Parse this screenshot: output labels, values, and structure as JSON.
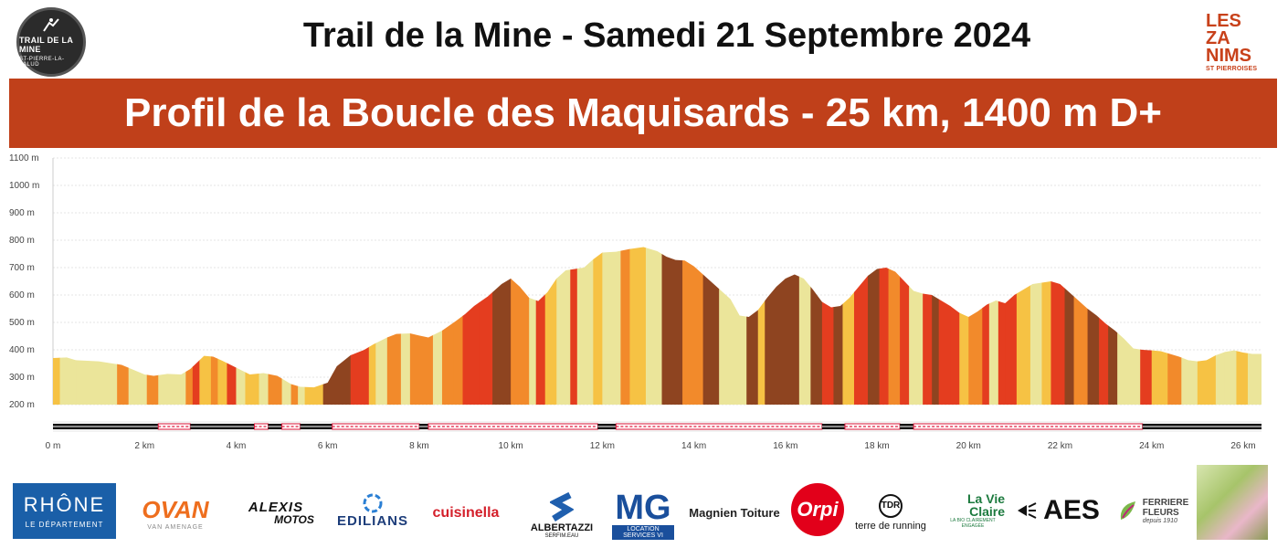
{
  "header": {
    "title": "Trail de la Mine - Samedi 21 Septembre 2024",
    "banner": "Profil de la Boucle des Maquisards - 25 km, 1400 m D+",
    "logo_left": {
      "line1": "TRAIL DE LA MINE",
      "line2": "ST-PIERRE-LA-PALUD"
    },
    "logo_right": {
      "lines": [
        "LES",
        "ZA",
        "NIMS"
      ],
      "sub": "ST PIERROISES"
    }
  },
  "chart_data": {
    "type": "area",
    "title": "",
    "xlabel": "",
    "ylabel": "",
    "xlim": [
      0,
      26.4
    ],
    "ylim": [
      200,
      1100
    ],
    "x_ticks": [
      0,
      2,
      4,
      6,
      8,
      10,
      12,
      14,
      16,
      18,
      20,
      22,
      24,
      26
    ],
    "x_tick_labels": [
      "0 m",
      "2 km",
      "4 km",
      "6 km",
      "8 km",
      "10 km",
      "12 km",
      "14 km",
      "16 km",
      "18 km",
      "20 km",
      "22 km",
      "24 km",
      "26 km"
    ],
    "y_ticks": [
      200,
      300,
      400,
      500,
      600,
      700,
      800,
      900,
      1000,
      1100
    ],
    "y_tick_labels": [
      "200 m",
      "300 m",
      "400 m",
      "500 m",
      "600 m",
      "700 m",
      "800 m",
      "900 m",
      "1000 m",
      "1100 m"
    ],
    "grid": true,
    "colors": {
      "flat": "#ebe59a",
      "light": "#f6c244",
      "medium": "#f28a2b",
      "steep": "#e43d1f",
      "very_steep": "#8e4420"
    },
    "series": [
      {
        "x": [
          0,
          0.3,
          0.5,
          1,
          1.5,
          2,
          2.2,
          2.5,
          2.8,
          3,
          3.3,
          3.5,
          3.7,
          4,
          4.3,
          4.6,
          4.9,
          5.2,
          5.4,
          5.7,
          6,
          6.2,
          6.5,
          6.8,
          7,
          7.3,
          7.5,
          7.8,
          8,
          8.2,
          8.5,
          8.8,
          9,
          9.2,
          9.5,
          9.8,
          10,
          10.2,
          10.4,
          10.6,
          10.8,
          11,
          11.2,
          11.4,
          11.6,
          11.8,
          12,
          12.3,
          12.6,
          12.9,
          13.2,
          13.4,
          13.6,
          13.8,
          14,
          14.2,
          14.4,
          14.6,
          14.8,
          15,
          15.2,
          15.4,
          15.6,
          15.8,
          16,
          16.2,
          16.4,
          16.6,
          16.8,
          17,
          17.2,
          17.4,
          17.6,
          17.8,
          18,
          18.2,
          18.4,
          18.6,
          18.8,
          19,
          19.2,
          19.4,
          19.6,
          19.8,
          20,
          20.2,
          20.4,
          20.6,
          20.8,
          21,
          21.2,
          21.4,
          21.6,
          21.8,
          22,
          22.2,
          22.4,
          22.6,
          22.8,
          23,
          23.2,
          23.4,
          23.6,
          23.8,
          24,
          24.2,
          24.4,
          24.6,
          24.8,
          25,
          25.2,
          25.4,
          25.6,
          25.8,
          26,
          26.2,
          26.4
        ],
        "y": [
          370,
          372,
          362,
          358,
          345,
          310,
          305,
          312,
          310,
          330,
          378,
          375,
          360,
          335,
          310,
          315,
          305,
          275,
          265,
          263,
          280,
          340,
          380,
          400,
          420,
          445,
          458,
          460,
          452,
          445,
          470,
          505,
          530,
          560,
          595,
          640,
          660,
          630,
          590,
          578,
          610,
          660,
          690,
          695,
          700,
          730,
          755,
          758,
          768,
          775,
          760,
          740,
          728,
          726,
          705,
          675,
          645,
          615,
          585,
          525,
          520,
          545,
          590,
          630,
          660,
          675,
          660,
          620,
          575,
          555,
          560,
          590,
          630,
          670,
          695,
          700,
          685,
          650,
          615,
          605,
          600,
          580,
          560,
          535,
          520,
          540,
          565,
          580,
          570,
          600,
          620,
          640,
          645,
          650,
          640,
          610,
          580,
          550,
          525,
          495,
          470,
          440,
          405,
          400,
          398,
          395,
          385,
          375,
          362,
          358,
          362,
          380,
          392,
          398,
          390,
          385,
          385
        ]
      }
    ],
    "segment_bounds": [
      0,
      0.15,
      0.5,
      1.4,
      1.65,
      1.9,
      2.05,
      2.3,
      2.8,
      2.9,
      3.05,
      3.2,
      3.45,
      3.6,
      3.8,
      4,
      4.2,
      4.5,
      4.7,
      5,
      5.2,
      5.35,
      5.5,
      5.9,
      6.1,
      6.5,
      6.9,
      7.05,
      7.3,
      7.6,
      7.8,
      8.1,
      8.3,
      8.5,
      8.75,
      8.95,
      9.3,
      9.6,
      10,
      10.4,
      10.55,
      10.75,
      11,
      11.3,
      11.45,
      11.8,
      12,
      12.4,
      12.6,
      12.95,
      13.3,
      13.55,
      13.75,
      14.2,
      14.55,
      14.9,
      15.15,
      15.4,
      15.55,
      16.05,
      16.3,
      16.55,
      16.8,
      17.05,
      17.25,
      17.5,
      17.8,
      18.05,
      18.25,
      18.5,
      18.7,
      19,
      19.2,
      19.35,
      19.6,
      19.8,
      20,
      20.3,
      20.45,
      20.65,
      20.8,
      21.05,
      21.35,
      21.6,
      21.8,
      22.1,
      22.3,
      22.6,
      22.85,
      23.05,
      23.25,
      23.5,
      23.75,
      24,
      24.35,
      24.65,
      24.85,
      25,
      25.2,
      25.4,
      25.6,
      25.85,
      26.1,
      26.4
    ],
    "segment_classes": [
      "light",
      "flat",
      "flat",
      "medium",
      "flat",
      "flat",
      "medium",
      "flat",
      "flat",
      "medium",
      "steep",
      "light",
      "medium",
      "light",
      "steep",
      "flat",
      "light",
      "flat",
      "medium",
      "flat",
      "medium",
      "flat",
      "light",
      "very_steep",
      "very_steep",
      "steep",
      "light",
      "flat",
      "medium",
      "flat",
      "medium",
      "medium",
      "flat",
      "medium",
      "medium",
      "steep",
      "steep",
      "very_steep",
      "medium",
      "flat",
      "steep",
      "light",
      "flat",
      "steep",
      "flat",
      "light",
      "flat",
      "medium",
      "light",
      "flat",
      "very_steep",
      "very_steep",
      "medium",
      "very_steep",
      "flat",
      "flat",
      "very_steep",
      "light",
      "very_steep",
      "very_steep",
      "flat",
      "very_steep",
      "steep",
      "very_steep",
      "light",
      "steep",
      "very_steep",
      "steep",
      "medium",
      "steep",
      "flat",
      "steep",
      "very_steep",
      "steep",
      "steep",
      "light",
      "medium",
      "steep",
      "flat",
      "steep",
      "steep",
      "light",
      "flat",
      "light",
      "steep",
      "very_steep",
      "medium",
      "very_steep",
      "steep",
      "very_steep",
      "flat",
      "flat",
      "steep",
      "light",
      "medium",
      "flat",
      "flat",
      "light",
      "light",
      "flat",
      "flat",
      "light",
      "flat"
    ],
    "surface_bar": {
      "segments": [
        {
          "from": 0,
          "to": 2.3,
          "type": "road"
        },
        {
          "from": 2.3,
          "to": 3.0,
          "type": "trail"
        },
        {
          "from": 3.0,
          "to": 4.4,
          "type": "road"
        },
        {
          "from": 4.4,
          "to": 4.7,
          "type": "trail"
        },
        {
          "from": 4.7,
          "to": 5.0,
          "type": "road"
        },
        {
          "from": 5.0,
          "to": 5.4,
          "type": "trail"
        },
        {
          "from": 5.4,
          "to": 6.1,
          "type": "road"
        },
        {
          "from": 6.1,
          "to": 8.0,
          "type": "trail"
        },
        {
          "from": 8.0,
          "to": 8.2,
          "type": "road"
        },
        {
          "from": 8.2,
          "to": 11.9,
          "type": "trail"
        },
        {
          "from": 11.9,
          "to": 12.3,
          "type": "road"
        },
        {
          "from": 12.3,
          "to": 16.8,
          "type": "trail"
        },
        {
          "from": 16.8,
          "to": 17.3,
          "type": "road"
        },
        {
          "from": 17.3,
          "to": 18.5,
          "type": "trail"
        },
        {
          "from": 18.5,
          "to": 18.8,
          "type": "road"
        },
        {
          "from": 18.8,
          "to": 23.8,
          "type": "trail"
        },
        {
          "from": 23.8,
          "to": 26.4,
          "type": "road"
        }
      ]
    }
  },
  "sponsors": [
    {
      "name": "rhone",
      "line1": "RHÔNE",
      "line2": "LE DÉPARTEMENT"
    },
    {
      "name": "ovan",
      "line1": "OVAN",
      "line2": "VAN AMENAGE"
    },
    {
      "name": "alexis",
      "line1": "ALEXIS",
      "line2": "MOTOS"
    },
    {
      "name": "edilians",
      "line1": "EDILIANS"
    },
    {
      "name": "cuisinella",
      "line1": "cuisinella"
    },
    {
      "name": "albertazzi",
      "line1": "ALBERTAZZI",
      "line2": "SERFIM.EAU"
    },
    {
      "name": "mg",
      "line1": "MG",
      "line2": "LOCATION SERVICES VI"
    },
    {
      "name": "magnien",
      "line1": "Magnien Toiture"
    },
    {
      "name": "orpi",
      "line1": "Orpi"
    },
    {
      "name": "terre",
      "line1": "TDR",
      "line2": "terre de running"
    },
    {
      "name": "lavieclaire",
      "line1": "La Vie",
      "line2": "Claire",
      "line3": "LA BIO CLAIREMENT ENGAGÉE"
    },
    {
      "name": "aes",
      "line1": "AES"
    },
    {
      "name": "ferriere",
      "line1": "FERRIERE",
      "line2": "FLEURS",
      "line3": "depuis 1910"
    }
  ]
}
